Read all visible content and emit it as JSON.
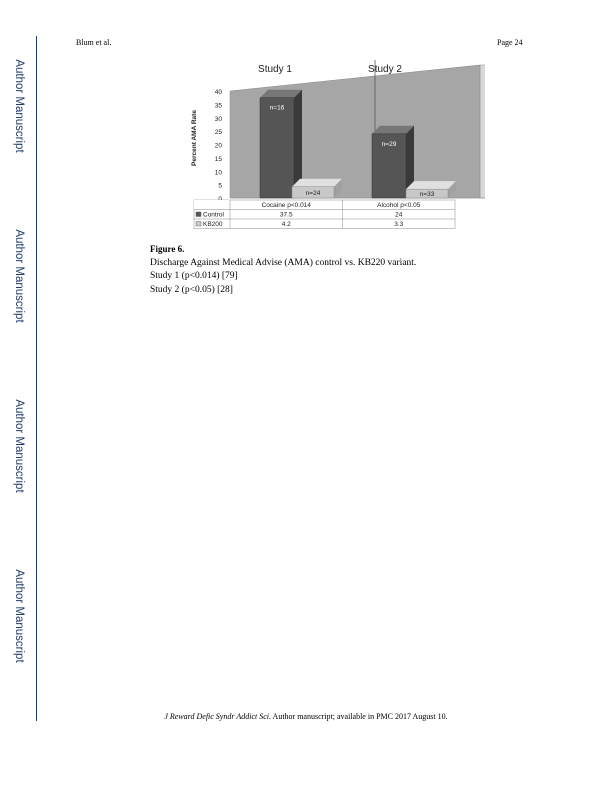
{
  "sidebar": {
    "label": "Author Manuscript"
  },
  "header": {
    "left": "Blum et al.",
    "right": "Page 24"
  },
  "chart_data": {
    "type": "bar",
    "ylabel": "Percent AMA Rate",
    "ylim": [
      0,
      40
    ],
    "yticks": [
      0,
      5,
      10,
      15,
      20,
      25,
      30,
      35,
      40
    ],
    "panels": [
      "Study 1",
      "Study 2"
    ],
    "categories": [
      "Cocaine p<0.014",
      "Alcohol p<0.05"
    ],
    "series": [
      {
        "name": "Control",
        "values": [
          37.5,
          24
        ],
        "n_labels": [
          "n=16",
          "n=29"
        ],
        "color": "#555555"
      },
      {
        "name": "KB200",
        "values": [
          4.2,
          3.3
        ],
        "n_labels": [
          "n=24",
          "n=33"
        ],
        "color": "#c8c8c8"
      }
    ],
    "table": {
      "rows": [
        {
          "label": "Control",
          "values": [
            "37.5",
            "24"
          ]
        },
        {
          "label": "KB200",
          "values": [
            "4.2",
            "3.3"
          ]
        }
      ]
    }
  },
  "caption": {
    "figure": "Figure 6.",
    "line1": "Discharge Against Medical Advise (AMA) control vs. KB220 variant.",
    "line2": "Study 1 (p<0.014) [79]",
    "line3": "Study 2 (p<0.05) [28]"
  },
  "footer": {
    "journal": "J Reward Defic Syndr Addict Sci",
    "rest": ". Author manuscript; available in PMC 2017 August 10."
  }
}
